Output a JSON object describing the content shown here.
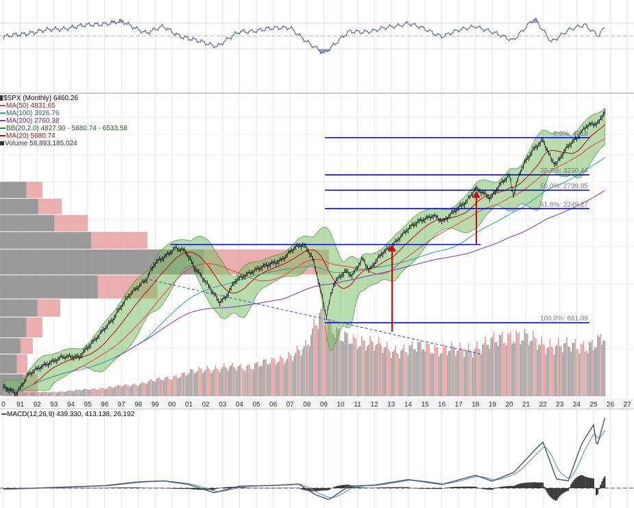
{
  "chart_data": {
    "type": "line",
    "symbol": "$SPX (Monthly)",
    "last_value": "6460.26",
    "x_ticks": [
      "0",
      "91",
      "92",
      "93",
      "94",
      "95",
      "96",
      "97",
      "98",
      "99",
      "00",
      "01",
      "02",
      "03",
      "04",
      "05",
      "06",
      "07",
      "08",
      "09",
      "10",
      "11",
      "12",
      "13",
      "14",
      "15",
      "16",
      "17",
      "18",
      "19",
      "20",
      "21",
      "22",
      "23",
      "24",
      "25",
      "26",
      "27"
    ],
    "price_series": [
      [
        1990.0,
        330
      ],
      [
        1990.8,
        310
      ],
      [
        1991.5,
        380
      ],
      [
        1992.5,
        420
      ],
      [
        1993.5,
        460
      ],
      [
        1994.5,
        455
      ],
      [
        1995.5,
        560
      ],
      [
        1996.5,
        680
      ],
      [
        1997.5,
        900
      ],
      [
        1998.5,
        1050
      ],
      [
        1999.0,
        1250
      ],
      [
        1999.6,
        1350
      ],
      [
        2000.2,
        1480
      ],
      [
        2000.8,
        1420
      ],
      [
        2001.3,
        1200
      ],
      [
        2001.8,
        1080
      ],
      [
        2002.5,
        900
      ],
      [
        2002.8,
        820
      ],
      [
        2003.2,
        860
      ],
      [
        2003.8,
        1050
      ],
      [
        2004.5,
        1120
      ],
      [
        2005.5,
        1210
      ],
      [
        2006.5,
        1300
      ],
      [
        2007.3,
        1480
      ],
      [
        2007.8,
        1520
      ],
      [
        2008.3,
        1350
      ],
      [
        2008.8,
        950
      ],
      [
        2009.15,
        700
      ],
      [
        2009.6,
        1000
      ],
      [
        2010.3,
        1150
      ],
      [
        2010.7,
        1100
      ],
      [
        2011.3,
        1320
      ],
      [
        2011.7,
        1150
      ],
      [
        2012.5,
        1400
      ],
      [
        2013.0,
        1500
      ],
      [
        2013.5,
        1650
      ],
      [
        2014.0,
        1800
      ],
      [
        2014.6,
        1950
      ],
      [
        2015.5,
        2100
      ],
      [
        2016.1,
        1950
      ],
      [
        2016.8,
        2200
      ],
      [
        2017.5,
        2450
      ],
      [
        2018.0,
        2800
      ],
      [
        2018.9,
        2500
      ],
      [
        2019.5,
        2950
      ],
      [
        2020.0,
        3230
      ],
      [
        2020.25,
        2600
      ],
      [
        2020.7,
        3400
      ],
      [
        2021.5,
        4300
      ],
      [
        2022.0,
        4700
      ],
      [
        2022.5,
        3800
      ],
      [
        2022.8,
        3600
      ],
      [
        2023.5,
        4400
      ],
      [
        2024.0,
        4800
      ],
      [
        2024.6,
        5500
      ],
      [
        2025.3,
        5600
      ],
      [
        2025.7,
        6460
      ]
    ],
    "volume_series": [
      [
        1990.5,
        0.3
      ],
      [
        1993.0,
        0.3
      ],
      [
        1996.0,
        0.6
      ],
      [
        1998.0,
        0.9
      ],
      [
        2000.0,
        1.4
      ],
      [
        2002.0,
        2.0
      ],
      [
        2004.0,
        2.1
      ],
      [
        2006.0,
        2.5
      ],
      [
        2008.0,
        3.5
      ],
      [
        2008.8,
        6.3
      ],
      [
        2009.2,
        5.5
      ],
      [
        2010.0,
        4.2
      ],
      [
        2011.5,
        4.0
      ],
      [
        2013.0,
        3.3
      ],
      [
        2015.0,
        3.6
      ],
      [
        2017.0,
        3.3
      ],
      [
        2018.5,
        3.7
      ],
      [
        2020.2,
        4.5
      ],
      [
        2022.0,
        3.8
      ],
      [
        2023.5,
        3.6
      ],
      [
        2025.0,
        3.8
      ],
      [
        2025.7,
        4.2
      ]
    ],
    "macd_series": [
      [
        1990.5,
        -5
      ],
      [
        1993.0,
        4
      ],
      [
        1996.0,
        15
      ],
      [
        1998.0,
        38
      ],
      [
        1999.5,
        44
      ],
      [
        2001.0,
        22
      ],
      [
        2002.5,
        -28
      ],
      [
        2004.0,
        12
      ],
      [
        2006.0,
        16
      ],
      [
        2007.5,
        25
      ],
      [
        2008.5,
        -40
      ],
      [
        2009.3,
        -70
      ],
      [
        2010.5,
        12
      ],
      [
        2012.0,
        18
      ],
      [
        2014.0,
        52
      ],
      [
        2016.0,
        22
      ],
      [
        2018.0,
        78
      ],
      [
        2019.0,
        42
      ],
      [
        2020.3,
        98
      ],
      [
        2021.5,
        230
      ],
      [
        2022.0,
        280
      ],
      [
        2022.8,
        55
      ],
      [
        2023.5,
        45
      ],
      [
        2024.3,
        270
      ],
      [
        2025.0,
        385
      ],
      [
        2025.2,
        250
      ],
      [
        2025.7,
        439
      ]
    ],
    "rsi_series": [
      [
        1990.0,
        48
      ],
      [
        1991.5,
        55
      ],
      [
        1993.0,
        60
      ],
      [
        1995.5,
        68
      ],
      [
        1997.0,
        72
      ],
      [
        1998.5,
        55
      ],
      [
        1999.5,
        64
      ],
      [
        2000.5,
        50
      ],
      [
        2001.5,
        42
      ],
      [
        2002.7,
        35
      ],
      [
        2004.0,
        56
      ],
      [
        2005.5,
        60
      ],
      [
        2007.0,
        64
      ],
      [
        2008.0,
        40
      ],
      [
        2009.0,
        24
      ],
      [
        2010.5,
        56
      ],
      [
        2012.0,
        58
      ],
      [
        2014.0,
        70
      ],
      [
        2016.0,
        50
      ],
      [
        2018.0,
        66
      ],
      [
        2019.0,
        55
      ],
      [
        2020.2,
        44
      ],
      [
        2021.5,
        76
      ],
      [
        2022.5,
        42
      ],
      [
        2023.5,
        58
      ],
      [
        2024.5,
        68
      ],
      [
        2025.3,
        50
      ],
      [
        2025.7,
        64
      ]
    ],
    "rsi_ylim": [
      0,
      100
    ],
    "fibonacci": [
      {
        "label": "0.0%: 4818",
        "value": 4818
      },
      {
        "label": "38.2%: 3230.44",
        "value": 3230
      },
      {
        "label": "50.0%: 2739.85",
        "value": 2740
      },
      {
        "label": "61.8%: 2249.27",
        "value": 2249
      },
      {
        "label": "100.0%: 661.09",
        "value": 661
      }
    ],
    "legend": [
      {
        "text": "MA(50) 4831.65",
        "color": "#e04040"
      },
      {
        "text": "MA(100) 3926.76",
        "color": "#20a0a0"
      },
      {
        "text": "MA(200) 2760.38",
        "color": "#8040c0"
      },
      {
        "text": "BB(20,2.0) 4827.90 - 5680.74 - 6533.58",
        "color": "#2e7d2e"
      },
      {
        "text": "MA(20) 5680.74",
        "color": "#c00000"
      },
      {
        "text": "Volume 58,893,185,024",
        "color": "#333333"
      }
    ],
    "macd_label": "MACD(12,26,9) 439.330, 413.138, 26.192",
    "colors": {
      "price": "#000000",
      "bollinger_fill": "#7dbf6a",
      "fib_line": "#0000cc",
      "arrow": "#dd0000",
      "ma50": "#e04040",
      "ma100": "#20a0a0",
      "ma200": "#8040c0",
      "volume": "#999999",
      "macd": "#4a5a70",
      "rsi": "#5a6a88",
      "volume_profile_grey": "#888888",
      "volume_profile_red": "#e8a0a0"
    }
  }
}
